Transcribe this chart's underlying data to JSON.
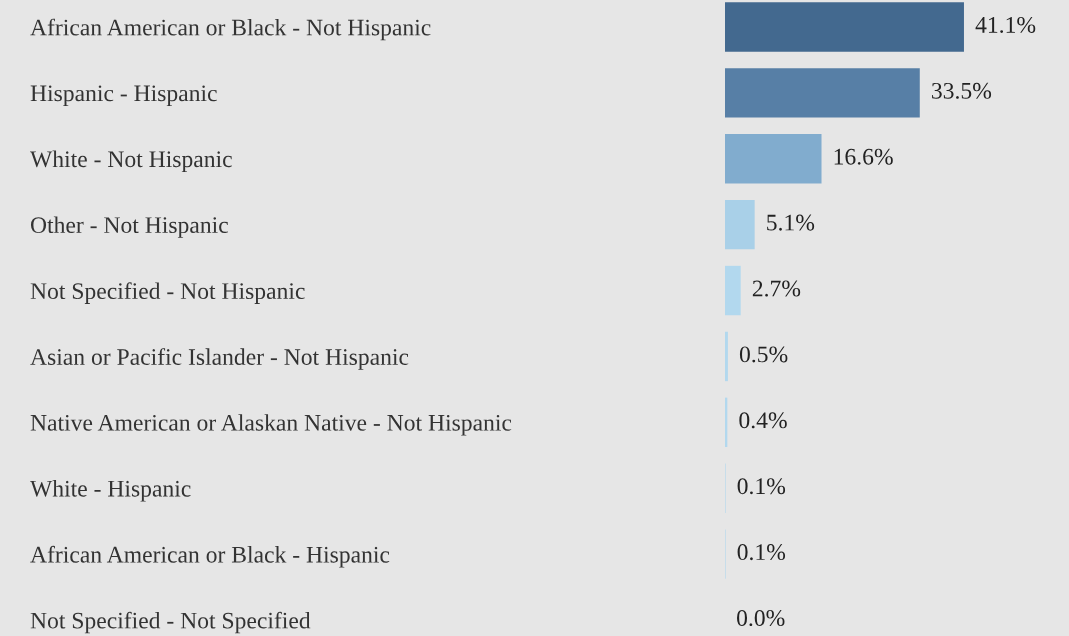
{
  "chart_data": {
    "type": "bar",
    "orientation": "horizontal",
    "categories": [
      "African American or Black - Not Hispanic",
      "Hispanic - Hispanic",
      "White - Not Hispanic",
      "Other - Not Hispanic",
      "Not Specified - Not Hispanic",
      "Asian or Pacific Islander - Not Hispanic",
      "Native American or Alaskan Native - Not Hispanic",
      "White - Hispanic",
      "African American or Black - Hispanic",
      "Not Specified - Not Specified"
    ],
    "values": [
      41.1,
      33.5,
      16.6,
      5.1,
      2.7,
      0.5,
      0.4,
      0.1,
      0.1,
      0.0
    ],
    "colors": [
      "#43698f",
      "#577fa6",
      "#81acce",
      "#a9d0e8",
      "#b2d8ee",
      "#b2d8ee",
      "#b2d8ee",
      "#b2d8ee",
      "#b2d8ee",
      "#b2d8ee"
    ],
    "value_labels": [
      "41.1%",
      "33.5%",
      "16.6%",
      "5.1%",
      "2.7%",
      "0.5%",
      "0.4%",
      "0.1%",
      "0.1%",
      "0.0%"
    ],
    "tick_labels": "y"
  }
}
